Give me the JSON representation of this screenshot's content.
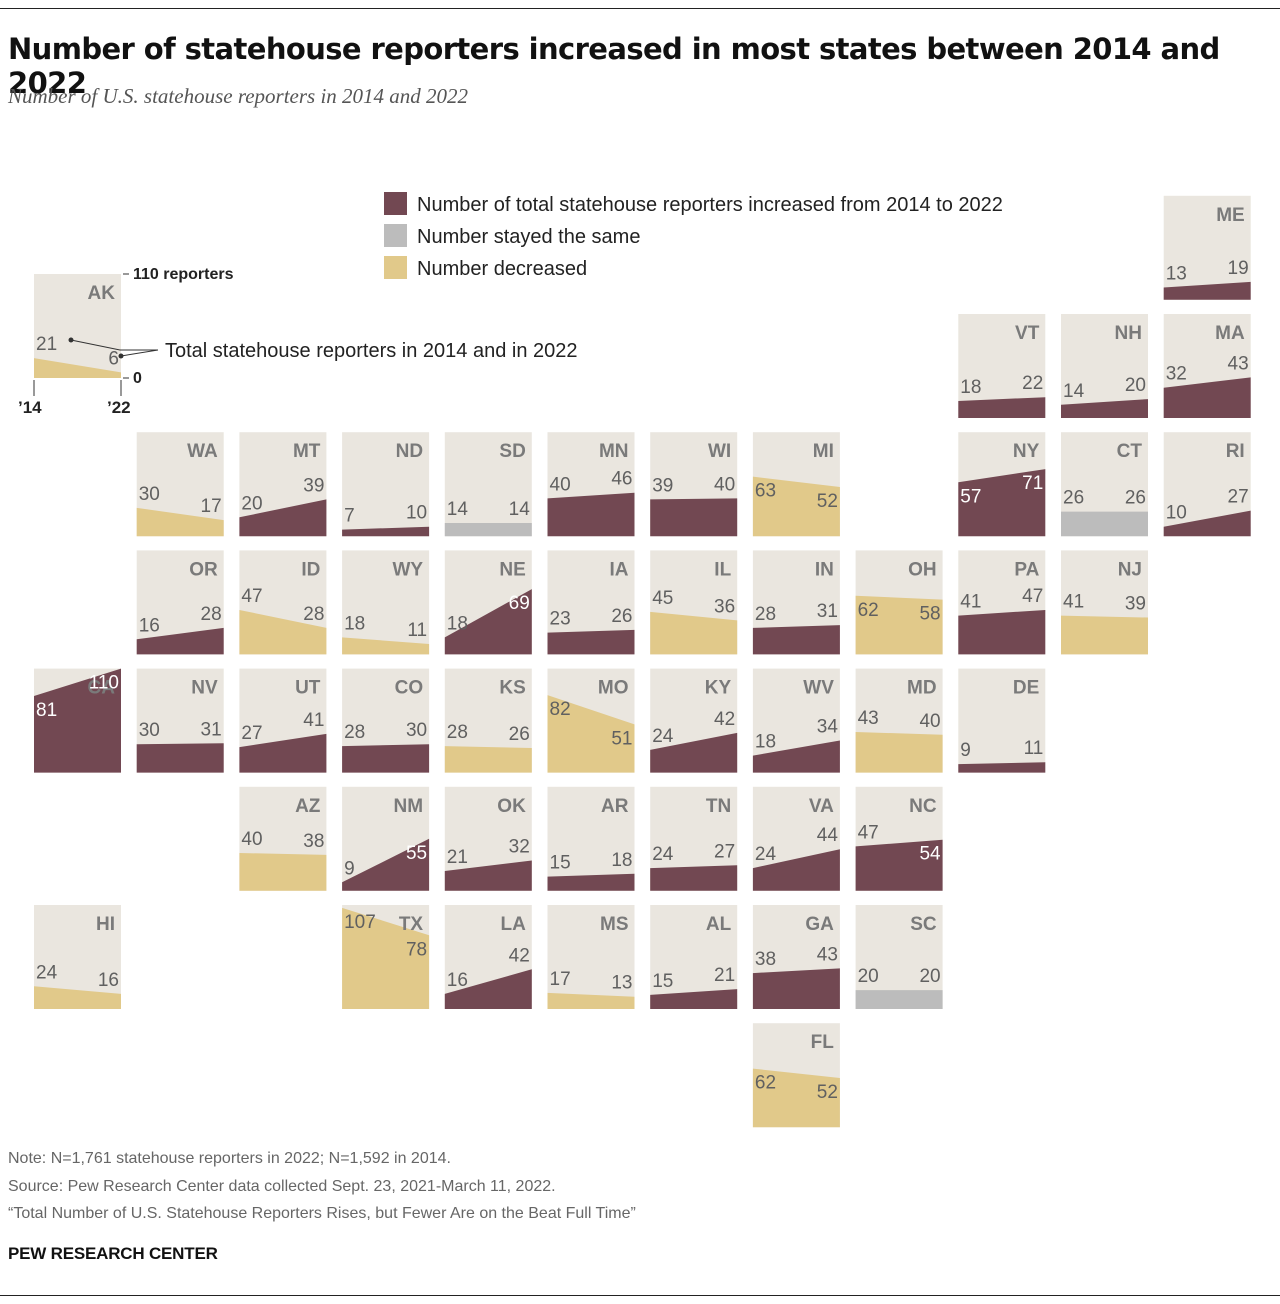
{
  "title": "Number of statehouse reporters increased in most states between 2014 and 2022",
  "subtitle": "Number of U.S. statehouse reporters in 2014 and 2022",
  "notes": {
    "note": "Note: N=1,761 statehouse reporters in 2022; N=1,592 in 2014.",
    "source": "Source: Pew Research Center data collected Sept. 23, 2021-March 11, 2022.",
    "report": "“Total Number of U.S. Statehouse Reporters Rises, but Fewer Are on the Beat Full Time”"
  },
  "brand": "PEW RESEARCH CENTER",
  "colors": {
    "increased": "#724852",
    "same": "#bcbcbc",
    "decreased": "#e1c98a",
    "tile_bg": "#eae6df",
    "label": "#606060"
  },
  "chart_data": {
    "type": "tile-map",
    "max_value": 110,
    "legend": [
      {
        "key": "increased",
        "label": "Number of total statehouse reporters increased from 2014 to 2022"
      },
      {
        "key": "same",
        "label": "Number stayed the same"
      },
      {
        "key": "decreased",
        "label": "Number decreased"
      }
    ],
    "key": {
      "max_label": "110 reporters",
      "min_label": "0",
      "year_start": "’14",
      "year_end": "’22",
      "callout": "Total statehouse reporters in 2014 and in 2022"
    },
    "states": [
      {
        "abbr": "AK",
        "col": 0,
        "row": 0,
        "v2014": 21,
        "v2022": 6
      },
      {
        "abbr": "ME",
        "col": 11,
        "row": -1,
        "v2014": 13,
        "v2022": 19
      },
      {
        "abbr": "VT",
        "col": 9,
        "row": 0,
        "v2014": 18,
        "v2022": 22
      },
      {
        "abbr": "NH",
        "col": 10,
        "row": 0,
        "v2014": 14,
        "v2022": 20
      },
      {
        "abbr": "MA",
        "col": 11,
        "row": 0,
        "v2014": 32,
        "v2022": 43
      },
      {
        "abbr": "WA",
        "col": 1,
        "row": 1,
        "v2014": 30,
        "v2022": 17
      },
      {
        "abbr": "MT",
        "col": 2,
        "row": 1,
        "v2014": 20,
        "v2022": 39
      },
      {
        "abbr": "ND",
        "col": 3,
        "row": 1,
        "v2014": 7,
        "v2022": 10
      },
      {
        "abbr": "SD",
        "col": 4,
        "row": 1,
        "v2014": 14,
        "v2022": 14
      },
      {
        "abbr": "MN",
        "col": 5,
        "row": 1,
        "v2014": 40,
        "v2022": 46
      },
      {
        "abbr": "WI",
        "col": 6,
        "row": 1,
        "v2014": 39,
        "v2022": 40
      },
      {
        "abbr": "MI",
        "col": 7,
        "row": 1,
        "v2014": 63,
        "v2022": 52
      },
      {
        "abbr": "NY",
        "col": 9,
        "row": 1,
        "v2014": 57,
        "v2022": 71
      },
      {
        "abbr": "CT",
        "col": 10,
        "row": 1,
        "v2014": 26,
        "v2022": 26
      },
      {
        "abbr": "RI",
        "col": 11,
        "row": 1,
        "v2014": 10,
        "v2022": 27
      },
      {
        "abbr": "OR",
        "col": 1,
        "row": 2,
        "v2014": 16,
        "v2022": 28
      },
      {
        "abbr": "ID",
        "col": 2,
        "row": 2,
        "v2014": 47,
        "v2022": 28
      },
      {
        "abbr": "WY",
        "col": 3,
        "row": 2,
        "v2014": 18,
        "v2022": 11
      },
      {
        "abbr": "NE",
        "col": 4,
        "row": 2,
        "v2014": 18,
        "v2022": 69
      },
      {
        "abbr": "IA",
        "col": 5,
        "row": 2,
        "v2014": 23,
        "v2022": 26
      },
      {
        "abbr": "IL",
        "col": 6,
        "row": 2,
        "v2014": 45,
        "v2022": 36
      },
      {
        "abbr": "IN",
        "col": 7,
        "row": 2,
        "v2014": 28,
        "v2022": 31
      },
      {
        "abbr": "OH",
        "col": 8,
        "row": 2,
        "v2014": 62,
        "v2022": 58
      },
      {
        "abbr": "PA",
        "col": 9,
        "row": 2,
        "v2014": 41,
        "v2022": 47
      },
      {
        "abbr": "NJ",
        "col": 10,
        "row": 2,
        "v2014": 41,
        "v2022": 39
      },
      {
        "abbr": "CA",
        "col": 0,
        "row": 3,
        "v2014": 81,
        "v2022": 110
      },
      {
        "abbr": "NV",
        "col": 1,
        "row": 3,
        "v2014": 30,
        "v2022": 31
      },
      {
        "abbr": "UT",
        "col": 2,
        "row": 3,
        "v2014": 27,
        "v2022": 41
      },
      {
        "abbr": "CO",
        "col": 3,
        "row": 3,
        "v2014": 28,
        "v2022": 30
      },
      {
        "abbr": "KS",
        "col": 4,
        "row": 3,
        "v2014": 28,
        "v2022": 26
      },
      {
        "abbr": "MO",
        "col": 5,
        "row": 3,
        "v2014": 82,
        "v2022": 51
      },
      {
        "abbr": "KY",
        "col": 6,
        "row": 3,
        "v2014": 24,
        "v2022": 42
      },
      {
        "abbr": "WV",
        "col": 7,
        "row": 3,
        "v2014": 18,
        "v2022": 34
      },
      {
        "abbr": "MD",
        "col": 8,
        "row": 3,
        "v2014": 43,
        "v2022": 40
      },
      {
        "abbr": "DE",
        "col": 9,
        "row": 3,
        "v2014": 9,
        "v2022": 11
      },
      {
        "abbr": "AZ",
        "col": 2,
        "row": 4,
        "v2014": 40,
        "v2022": 38
      },
      {
        "abbr": "NM",
        "col": 3,
        "row": 4,
        "v2014": 9,
        "v2022": 55
      },
      {
        "abbr": "OK",
        "col": 4,
        "row": 4,
        "v2014": 21,
        "v2022": 32
      },
      {
        "abbr": "AR",
        "col": 5,
        "row": 4,
        "v2014": 15,
        "v2022": 18
      },
      {
        "abbr": "TN",
        "col": 6,
        "row": 4,
        "v2014": 24,
        "v2022": 27
      },
      {
        "abbr": "VA",
        "col": 7,
        "row": 4,
        "v2014": 24,
        "v2022": 44
      },
      {
        "abbr": "NC",
        "col": 8,
        "row": 4,
        "v2014": 47,
        "v2022": 54
      },
      {
        "abbr": "HI",
        "col": 0,
        "row": 5,
        "v2014": 24,
        "v2022": 16
      },
      {
        "abbr": "TX",
        "col": 3,
        "row": 5,
        "v2014": 107,
        "v2022": 78
      },
      {
        "abbr": "LA",
        "col": 4,
        "row": 5,
        "v2014": 16,
        "v2022": 42
      },
      {
        "abbr": "MS",
        "col": 5,
        "row": 5,
        "v2014": 17,
        "v2022": 13
      },
      {
        "abbr": "AL",
        "col": 6,
        "row": 5,
        "v2014": 15,
        "v2022": 21
      },
      {
        "abbr": "GA",
        "col": 7,
        "row": 5,
        "v2014": 38,
        "v2022": 43
      },
      {
        "abbr": "SC",
        "col": 8,
        "row": 5,
        "v2014": 20,
        "v2022": 20
      },
      {
        "abbr": "FL",
        "col": 7,
        "row": 6,
        "v2014": 62,
        "v2022": 52
      }
    ]
  }
}
